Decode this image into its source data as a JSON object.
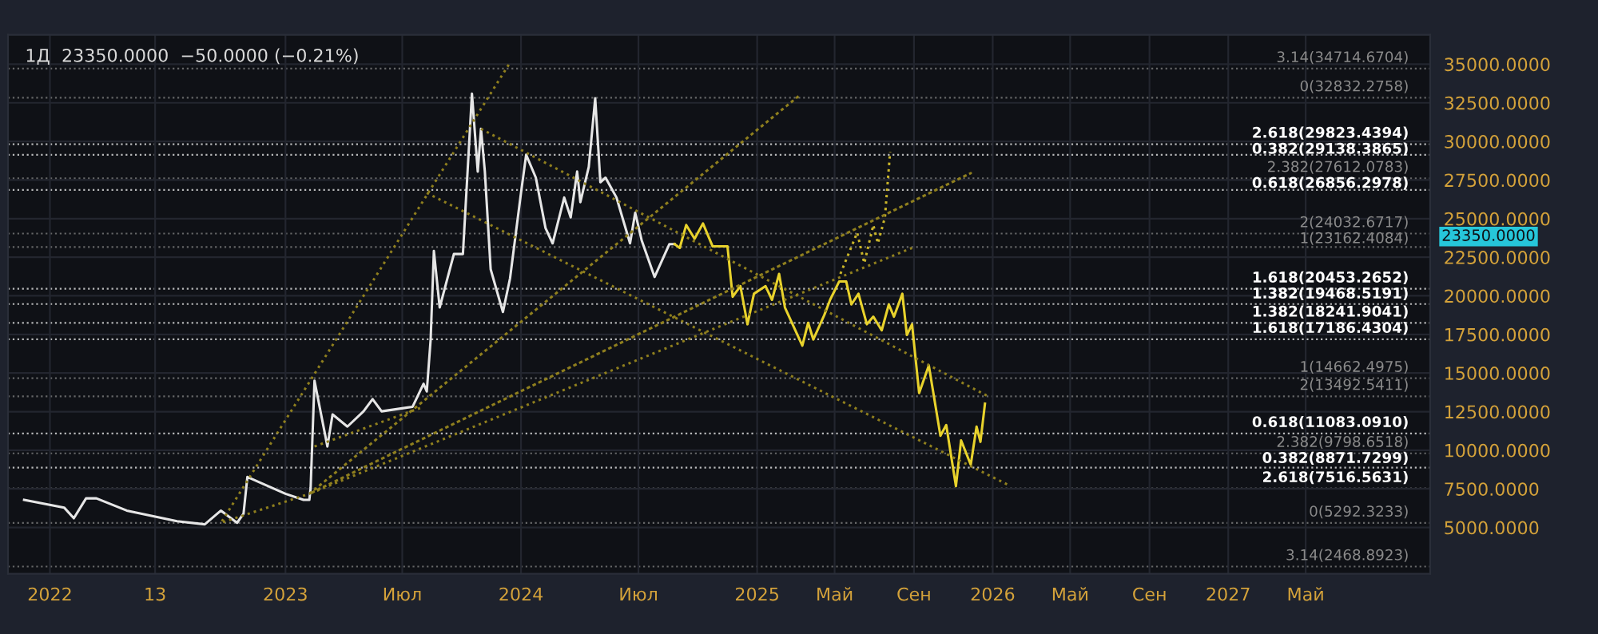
{
  "chart_data": {
    "type": "line",
    "title": "1Д  23350.0000  −50.0000 (−0.21%)",
    "xlim": [
      "2021-10-28",
      "2027-11-10"
    ],
    "xticks": [
      {
        "value": "2022-01-01",
        "label": "2022"
      },
      {
        "value": "2022-06-13",
        "label": "13"
      },
      {
        "value": "2023-01-01",
        "label": "2023"
      },
      {
        "value": "2023-07-01",
        "label": "Июл"
      },
      {
        "value": "2024-01-01",
        "label": "2024"
      },
      {
        "value": "2024-07-01",
        "label": "Июл"
      },
      {
        "value": "2025-01-01",
        "label": "2025"
      },
      {
        "value": "2025-05-01",
        "label": "Май"
      },
      {
        "value": "2025-09-01",
        "label": "Сен"
      },
      {
        "value": "2026-01-01",
        "label": "2026"
      },
      {
        "value": "2026-05-01",
        "label": "Май"
      },
      {
        "value": "2026-09-01",
        "label": "Сен"
      },
      {
        "value": "2027-01-01",
        "label": "2027"
      },
      {
        "value": "2027-05-01",
        "label": "Май"
      }
    ],
    "ylim": [
      2000,
      36900
    ],
    "yticks": [
      {
        "value": 5000,
        "label": "5000.0000"
      },
      {
        "value": 7500,
        "label": "7500.0000"
      },
      {
        "value": 10000,
        "label": "10000.0000"
      },
      {
        "value": 12500,
        "label": "12500.0000"
      },
      {
        "value": 15000,
        "label": "15000.0000"
      },
      {
        "value": 17500,
        "label": "17500.0000"
      },
      {
        "value": 20000,
        "label": "20000.0000"
      },
      {
        "value": 22500,
        "label": "22500.0000"
      },
      {
        "value": 25000,
        "label": "25000.0000"
      },
      {
        "value": 27500,
        "label": "27500.0000"
      },
      {
        "value": 30000,
        "label": "30000.0000"
      },
      {
        "value": 32500,
        "label": "32500.0000"
      },
      {
        "value": 35000,
        "label": "35000.0000"
      }
    ],
    "grid": true,
    "marker": "none",
    "series": [
      {
        "color": "#e6e6e6",
        "line_style": "solid",
        "x": [
          "2021-11-22",
          "2022-01-23",
          "2022-02-07",
          "2022-02-26",
          "2022-03-14",
          "2022-04-30",
          "2022-07-17",
          "2022-08-29",
          "2022-09-23",
          "2022-10-18",
          "2022-10-28",
          "2022-11-03",
          "2023-01-01",
          "2023-01-29",
          "2023-02-07",
          "2023-02-09",
          "2023-02-15",
          "2023-03-07",
          "2023-03-15",
          "2023-04-07",
          "2023-05-02",
          "2023-05-16",
          "2023-05-30",
          "2023-07-17",
          "2023-08-03",
          "2023-08-08",
          "2023-08-14",
          "2023-08-19",
          "2023-08-28",
          "2023-09-19",
          "2023-10-03",
          "2023-10-17",
          "2023-10-26",
          "2023-10-31",
          "2023-11-06",
          "2023-11-15",
          "2023-12-04",
          "2023-12-15",
          "2024-01-01",
          "2024-01-09",
          "2024-01-24",
          "2024-02-08",
          "2024-02-19",
          "2024-03-08",
          "2024-03-18",
          "2024-03-28",
          "2024-04-02",
          "2024-04-15",
          "2024-04-25",
          "2024-05-03",
          "2024-05-11",
          "2024-05-28",
          "2024-06-18",
          "2024-06-26",
          "2024-07-06",
          "2024-07-26",
          "2024-08-18",
          "2024-08-26"
        ],
        "values": [
          6784,
          6289,
          5597,
          6883,
          6883,
          6091,
          5399,
          5201,
          6091,
          5300,
          5893,
          8268,
          7179,
          6784,
          6784,
          7575,
          14498,
          10245,
          12322,
          11531,
          12520,
          13312,
          12520,
          12817,
          14300,
          13806,
          17168,
          22905,
          19245,
          22707,
          22707,
          33091,
          28047,
          30817,
          28047,
          21718,
          18949,
          21125,
          26663,
          29135,
          27652,
          24388,
          23399,
          26366,
          25080,
          28047,
          26069,
          28344,
          32795,
          27355,
          27652,
          26366,
          23399,
          25377,
          23597,
          21223,
          23350,
          23350
        ]
      },
      {
        "color": "#e8d22c",
        "line_style": "solid",
        "x": [
          "2024-08-26",
          "2024-09-03",
          "2024-09-13",
          "2024-09-26",
          "2024-10-09",
          "2024-10-24",
          "2024-11-16",
          "2024-11-24",
          "2024-12-06",
          "2024-12-17",
          "2024-12-27",
          "2025-01-14",
          "2025-01-24",
          "2025-02-04",
          "2025-02-13",
          "2025-03-12",
          "2025-03-21",
          "2025-03-29",
          "2025-04-15",
          "2025-04-24",
          "2025-05-08",
          "2025-05-19",
          "2025-05-27",
          "2025-06-07",
          "2025-06-20",
          "2025-06-30",
          "2025-07-13",
          "2025-07-24",
          "2025-08-01",
          "2025-08-14",
          "2025-08-21",
          "2025-08-29",
          "2025-09-09",
          "2025-09-24",
          "2025-10-12",
          "2025-10-21",
          "2025-11-05",
          "2025-11-13",
          "2025-11-28",
          "2025-12-07",
          "2025-12-13",
          "2025-12-20"
        ],
        "values": [
          23350,
          23103,
          24586,
          23696,
          24685,
          23201,
          23201,
          19938,
          20630,
          18158,
          20135,
          20630,
          19740,
          21421,
          19245,
          16773,
          18256,
          17168,
          18751,
          19740,
          20927,
          20927,
          19443,
          20135,
          18158,
          18652,
          17762,
          19443,
          18652,
          20135,
          17465,
          18158,
          13707,
          15487,
          10937,
          11630,
          7674,
          10641,
          9059,
          11531,
          10542,
          13015
        ]
      },
      {
        "color": "#c9b52a",
        "line_style": "dotted",
        "x": [
          "2025-05-10",
          "2025-06-05",
          "2025-06-16",
          "2025-06-30",
          "2025-07-07",
          "2025-07-18",
          "2025-07-26"
        ],
        "values": [
          21421,
          24092,
          22113,
          24586,
          23399,
          25080,
          29333
        ]
      },
      {
        "color": "#8f7f1e",
        "line_style": "dotted",
        "x": [
          "2023-12-13",
          "2022-09-23",
          "2023-02-07",
          "2025-03-08",
          "2023-02-07",
          "2025-11-28",
          "2023-02-07",
          "2025-08-29"
        ],
        "values": [
          34970,
          5300,
          7179,
          32992,
          7179,
          27949,
          7179,
          23103
        ]
      },
      {
        "color": "#8f7f1e",
        "line_style": "dotted",
        "x": [
          "2023-02-15",
          "2023-08-03"
        ],
        "values": [
          10245,
          12817
        ]
      },
      {
        "color": "#8f7f1e",
        "line_style": "dotted",
        "x": [
          "2023-10-31",
          "2025-12-24"
        ],
        "values": [
          30817,
          13509
        ]
      },
      {
        "color": "#8f7f1e",
        "line_style": "dotted",
        "x": [
          "2023-08-08",
          "2026-01-24"
        ],
        "values": [
          26663,
          7773
        ]
      }
    ],
    "ref_lines": [
      {
        "axis": "y",
        "value": 34714.6704,
        "label": "3.14(34714.6704)",
        "color": "#8a8a8a",
        "line_style": "dotted"
      },
      {
        "axis": "y",
        "value": 32832.2758,
        "label": "0(32832.2758)",
        "color": "#8a8a8a",
        "line_style": "dotted"
      },
      {
        "axis": "y",
        "value": 29823.4394,
        "label": "2.618(29823.4394)",
        "color": "#ffffff",
        "line_style": "dotted"
      },
      {
        "axis": "y",
        "value": 29138.3865,
        "label": "0.382(29138.3865)",
        "color": "#ffffff",
        "line_style": "dotted"
      },
      {
        "axis": "y",
        "value": 27612.0783,
        "label": "2.382(27612.0783)",
        "color": "#8a8a8a",
        "line_style": "dotted"
      },
      {
        "axis": "y",
        "value": 26856.2978,
        "label": "0.618(26856.2978)",
        "color": "#ffffff",
        "line_style": "dotted"
      },
      {
        "axis": "y",
        "value": 24032.6717,
        "label": "2(24032.6717)",
        "color": "#8a8a8a",
        "line_style": "dotted"
      },
      {
        "axis": "y",
        "value": 23162.4084,
        "label": "1(23162.4084)",
        "color": "#8a8a8a",
        "line_style": "dotted"
      },
      {
        "axis": "y",
        "value": 20453.2652,
        "label": "1.618(20453.2652)",
        "color": "#ffffff",
        "line_style": "dotted"
      },
      {
        "axis": "y",
        "value": 19468.5191,
        "label": "1.382(19468.5191)",
        "color": "#ffffff",
        "line_style": "dotted"
      },
      {
        "axis": "y",
        "value": 18241.9041,
        "label": "1.382(18241.9041)",
        "color": "#ffffff",
        "line_style": "dotted"
      },
      {
        "axis": "y",
        "value": 17186.4304,
        "label": "1.618(17186.4304)",
        "color": "#ffffff",
        "line_style": "dotted"
      },
      {
        "axis": "y",
        "value": 14662.4975,
        "label": "1(14662.4975)",
        "color": "#8a8a8a",
        "line_style": "dotted"
      },
      {
        "axis": "y",
        "value": 13492.5411,
        "label": "2(13492.5411)",
        "color": "#8a8a8a",
        "line_style": "dotted"
      },
      {
        "axis": "y",
        "value": 11083.091,
        "label": "0.618(11083.0910)",
        "color": "#ffffff",
        "line_style": "dotted"
      },
      {
        "axis": "y",
        "value": 9798.6518,
        "label": "2.382(9798.6518)",
        "color": "#8a8a8a",
        "line_style": "dotted"
      },
      {
        "axis": "y",
        "value": 8871.7299,
        "label": "0.382(8871.7299)",
        "color": "#ffffff",
        "line_style": "dotted"
      },
      {
        "axis": "y",
        "value": 7516.5631,
        "label": "2.618(7516.5631)",
        "color": "#ffffff",
        "line_style": "dotted"
      },
      {
        "axis": "y",
        "value": 5292.3233,
        "label": "0(5292.3233)",
        "color": "#8a8a8a",
        "line_style": "dotted"
      },
      {
        "axis": "y",
        "value": 2468.8923,
        "label": "3.14(2468.8923)",
        "color": "#8a8a8a",
        "line_style": "dotted"
      }
    ],
    "annotations": [
      "23350.0000"
    ]
  }
}
